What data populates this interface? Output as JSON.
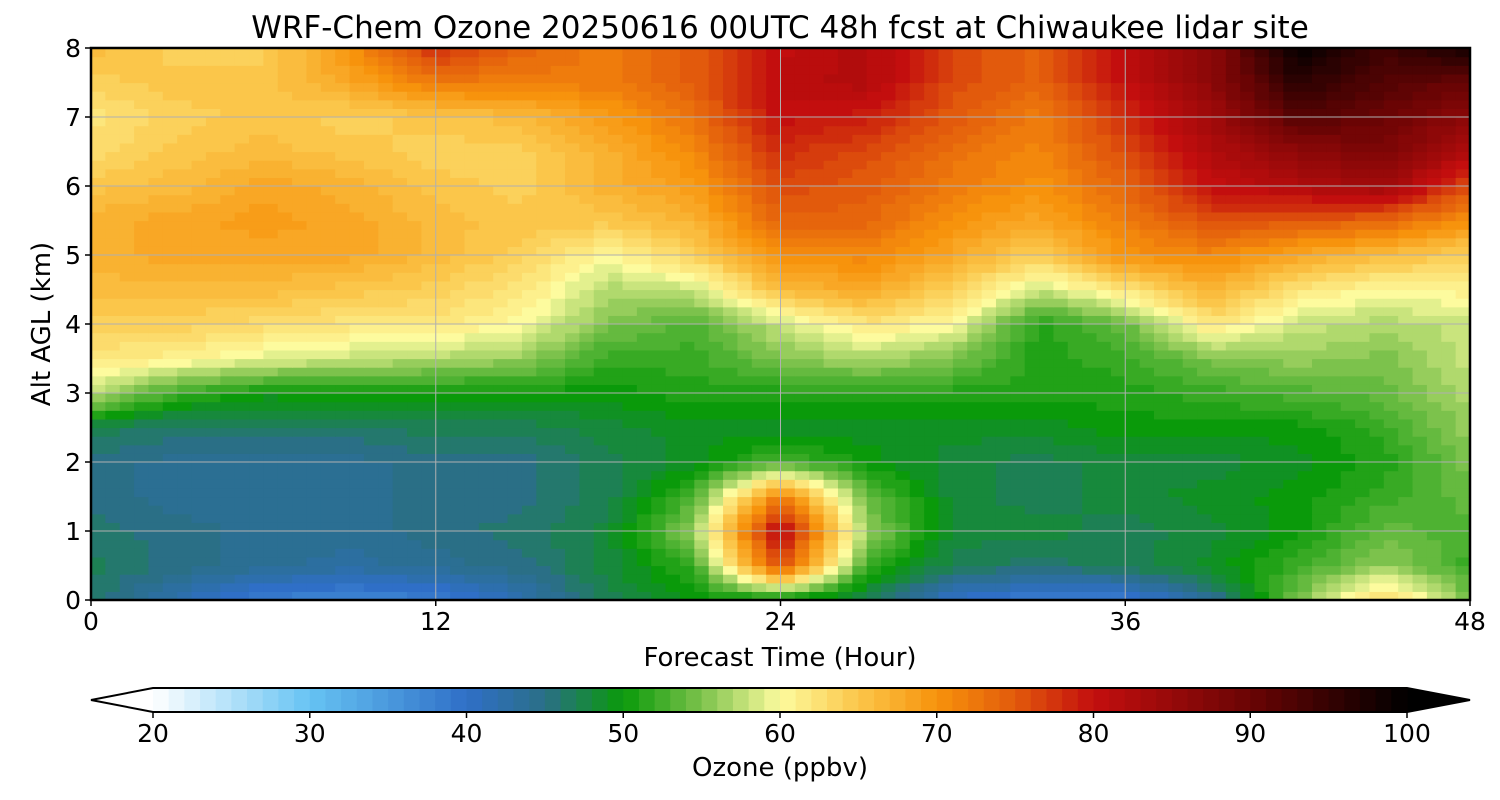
{
  "chart_data": {
    "type": "heatmap",
    "title": "WRF-Chem Ozone  20250616 00UTC 48h fcst at Chiwaukee lidar site",
    "xlabel": "Forecast Time (Hour)",
    "ylabel": "Alt AGL (km)",
    "xlim": [
      0,
      48
    ],
    "ylim": [
      0,
      8
    ],
    "x_ticks": [
      "0",
      "12",
      "24",
      "36",
      "48"
    ],
    "y_ticks": [
      "0",
      "1",
      "2",
      "3",
      "4",
      "5",
      "6",
      "7",
      "8"
    ],
    "grid": true,
    "x": [
      0,
      3,
      6,
      9,
      12,
      15,
      18,
      21,
      24,
      27,
      30,
      33,
      36,
      39,
      42,
      45,
      48
    ],
    "y": [
      0,
      0.5,
      1,
      1.5,
      2,
      2.5,
      3,
      3.5,
      4,
      4.5,
      5,
      5.5,
      6,
      6.5,
      7,
      7.5,
      8
    ],
    "z": [
      [
        46,
        42,
        38,
        37,
        38,
        42,
        47,
        50,
        49,
        47,
        40,
        38,
        38,
        44,
        55,
        64,
        55
      ],
      [
        47,
        45,
        44,
        43,
        44,
        45,
        48,
        52,
        76,
        52,
        47,
        46,
        47,
        49,
        52,
        56,
        52
      ],
      [
        46,
        45,
        44,
        44,
        45,
        46,
        48,
        56,
        82,
        56,
        48,
        48,
        47,
        48,
        50,
        54,
        53
      ],
      [
        45,
        44,
        44,
        44,
        45,
        45,
        47,
        53,
        72,
        54,
        48,
        47,
        48,
        49,
        50,
        52,
        54
      ],
      [
        45,
        44,
        44,
        44,
        45,
        45,
        47,
        49,
        53,
        50,
        48,
        47,
        48,
        48,
        49,
        51,
        55
      ],
      [
        47,
        46,
        46,
        46,
        47,
        47,
        48,
        49,
        49,
        49,
        49,
        49,
        50,
        50,
        50,
        52,
        56
      ],
      [
        58,
        52,
        50,
        50,
        50,
        50,
        50,
        51,
        51,
        51,
        51,
        51,
        51,
        52,
        53,
        54,
        57
      ],
      [
        62,
        61,
        59,
        58,
        57,
        56,
        52,
        52,
        55,
        57,
        55,
        51,
        52,
        55,
        56,
        55,
        58
      ],
      [
        64,
        64,
        63,
        62,
        62,
        60,
        55,
        53,
        58,
        62,
        60,
        51,
        54,
        62,
        58,
        57,
        58
      ],
      [
        66,
        66,
        66,
        65,
        64,
        62,
        57,
        58,
        66,
        68,
        64,
        58,
        62,
        67,
        62,
        60,
        61
      ],
      [
        67,
        68,
        68,
        68,
        66,
        64,
        60,
        64,
        70,
        71,
        68,
        64,
        70,
        71,
        68,
        66,
        64
      ],
      [
        67,
        68,
        69,
        68,
        66,
        65,
        65,
        67,
        74,
        74,
        70,
        68,
        72,
        76,
        75,
        74,
        70
      ],
      [
        65,
        66,
        68,
        67,
        65,
        64,
        67,
        69,
        76,
        75,
        72,
        70,
        74,
        80,
        82,
        84,
        76
      ],
      [
        63,
        65,
        66,
        65,
        64,
        64,
        67,
        71,
        78,
        76,
        73,
        71,
        76,
        82,
        86,
        88,
        82
      ],
      [
        62,
        64,
        65,
        64,
        65,
        66,
        69,
        73,
        80,
        79,
        75,
        72,
        78,
        84,
        92,
        90,
        86
      ],
      [
        64,
        65,
        65,
        68,
        72,
        72,
        72,
        75,
        81,
        82,
        76,
        74,
        80,
        86,
        96,
        92,
        90
      ],
      [
        66,
        64,
        64,
        70,
        78,
        74,
        72,
        75,
        80,
        82,
        76,
        74,
        80,
        86,
        100,
        94,
        98
      ]
    ],
    "colorbar": {
      "label": "Ozone  (ppbv)",
      "min": 20,
      "max": 100,
      "ticks": [
        "20",
        "30",
        "40",
        "50",
        "60",
        "70",
        "80",
        "90",
        "100"
      ],
      "extend": "both"
    },
    "colormap_stops": [
      {
        "v": 20,
        "c": "#ffffff"
      },
      {
        "v": 30,
        "c": "#66c3f3"
      },
      {
        "v": 40,
        "c": "#2f6fc7"
      },
      {
        "v": 45,
        "c": "#2a6f86"
      },
      {
        "v": 50,
        "c": "#0a9a0a"
      },
      {
        "v": 55,
        "c": "#7cc24c"
      },
      {
        "v": 60,
        "c": "#fdfb9e"
      },
      {
        "v": 65,
        "c": "#fbc64a"
      },
      {
        "v": 70,
        "c": "#f7930c"
      },
      {
        "v": 75,
        "c": "#e25a0c"
      },
      {
        "v": 80,
        "c": "#c30e0e"
      },
      {
        "v": 90,
        "c": "#6a0404"
      },
      {
        "v": 100,
        "c": "#000000"
      }
    ]
  }
}
